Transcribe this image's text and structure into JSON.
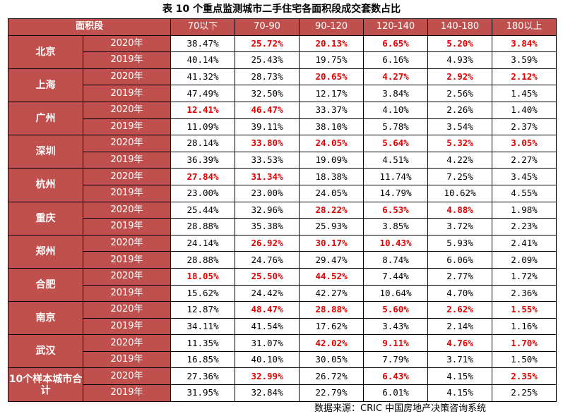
{
  "title": "表 10 个重点监测城市二手住宅各面积段成交套数占比",
  "header": {
    "area_label": "面积段",
    "columns": [
      "70以下",
      "70-90",
      "90-120",
      "120-140",
      "140-180",
      "180以上"
    ]
  },
  "highlight_color": "#e00000",
  "header_color": "#c0504d",
  "cities": [
    {
      "name": "北京",
      "rows": [
        {
          "year": "2020年",
          "values": [
            "38.47%",
            "25.72%",
            "20.13%",
            "6.65%",
            "5.20%",
            "3.84%"
          ],
          "highlight": [
            false,
            true,
            true,
            true,
            true,
            true
          ]
        },
        {
          "year": "2019年",
          "values": [
            "40.14%",
            "25.43%",
            "19.75%",
            "6.16%",
            "4.93%",
            "3.59%"
          ],
          "highlight": [
            false,
            false,
            false,
            false,
            false,
            false
          ]
        }
      ]
    },
    {
      "name": "上海",
      "rows": [
        {
          "year": "2020年",
          "values": [
            "41.32%",
            "28.73%",
            "20.65%",
            "4.27%",
            "2.92%",
            "2.12%"
          ],
          "highlight": [
            false,
            false,
            true,
            true,
            true,
            true
          ]
        },
        {
          "year": "2019年",
          "values": [
            "47.49%",
            "32.50%",
            "12.17%",
            "3.84%",
            "2.56%",
            "1.45%"
          ],
          "highlight": [
            false,
            false,
            false,
            false,
            false,
            false
          ]
        }
      ]
    },
    {
      "name": "广州",
      "rows": [
        {
          "year": "2020年",
          "values": [
            "12.41%",
            "46.47%",
            "33.37%",
            "4.10%",
            "2.26%",
            "1.40%"
          ],
          "highlight": [
            true,
            true,
            false,
            false,
            false,
            false
          ]
        },
        {
          "year": "2019年",
          "values": [
            "11.09%",
            "39.11%",
            "38.10%",
            "5.78%",
            "3.54%",
            "2.37%"
          ],
          "highlight": [
            false,
            false,
            false,
            false,
            false,
            false
          ]
        }
      ]
    },
    {
      "name": "深圳",
      "rows": [
        {
          "year": "2020年",
          "values": [
            "28.14%",
            "33.80%",
            "24.05%",
            "5.64%",
            "5.32%",
            "3.05%"
          ],
          "highlight": [
            false,
            true,
            true,
            true,
            true,
            true
          ]
        },
        {
          "year": "2019年",
          "values": [
            "36.39%",
            "33.53%",
            "19.09%",
            "4.51%",
            "4.22%",
            "2.27%"
          ],
          "highlight": [
            false,
            false,
            false,
            false,
            false,
            false
          ]
        }
      ]
    },
    {
      "name": "杭州",
      "rows": [
        {
          "year": "2020年",
          "values": [
            "27.84%",
            "31.34%",
            "18.38%",
            "11.74%",
            "7.25%",
            "3.45%"
          ],
          "highlight": [
            true,
            true,
            false,
            false,
            false,
            false
          ]
        },
        {
          "year": "2019年",
          "values": [
            "23.00%",
            "23.00%",
            "24.05%",
            "14.79%",
            "10.62%",
            "4.55%"
          ],
          "highlight": [
            false,
            false,
            false,
            false,
            false,
            false
          ]
        }
      ]
    },
    {
      "name": "重庆",
      "rows": [
        {
          "year": "2020年",
          "values": [
            "25.44%",
            "32.96%",
            "28.22%",
            "6.53%",
            "4.88%",
            "1.98%"
          ],
          "highlight": [
            false,
            false,
            true,
            true,
            true,
            false
          ]
        },
        {
          "year": "2019年",
          "values": [
            "28.88%",
            "35.38%",
            "25.93%",
            "3.85%",
            "3.72%",
            "2.23%"
          ],
          "highlight": [
            false,
            false,
            false,
            false,
            false,
            false
          ]
        }
      ]
    },
    {
      "name": "郑州",
      "rows": [
        {
          "year": "2020年",
          "values": [
            "24.14%",
            "26.92%",
            "30.17%",
            "10.43%",
            "5.93%",
            "2.41%"
          ],
          "highlight": [
            false,
            true,
            true,
            true,
            false,
            false
          ]
        },
        {
          "year": "2019年",
          "values": [
            "28.88%",
            "24.76%",
            "29.47%",
            "8.74%",
            "6.06%",
            "2.09%"
          ],
          "highlight": [
            false,
            false,
            false,
            false,
            false,
            false
          ]
        }
      ]
    },
    {
      "name": "合肥",
      "rows": [
        {
          "year": "2020年",
          "values": [
            "18.05%",
            "25.50%",
            "44.52%",
            "7.44%",
            "2.77%",
            "1.72%"
          ],
          "highlight": [
            true,
            true,
            true,
            false,
            false,
            false
          ]
        },
        {
          "year": "2019年",
          "values": [
            "15.62%",
            "24.42%",
            "42.27%",
            "10.64%",
            "4.70%",
            "2.36%"
          ],
          "highlight": [
            false,
            false,
            false,
            false,
            false,
            false
          ]
        }
      ]
    },
    {
      "name": "南京",
      "rows": [
        {
          "year": "2020年",
          "values": [
            "12.87%",
            "48.47%",
            "28.88%",
            "5.60%",
            "2.62%",
            "1.55%"
          ],
          "highlight": [
            false,
            true,
            true,
            true,
            true,
            true
          ]
        },
        {
          "year": "2019年",
          "values": [
            "34.11%",
            "41.54%",
            "17.62%",
            "3.43%",
            "2.14%",
            "1.16%"
          ],
          "highlight": [
            false,
            false,
            false,
            false,
            false,
            false
          ]
        }
      ]
    },
    {
      "name": "武汉",
      "rows": [
        {
          "year": "2020年",
          "values": [
            "11.35%",
            "31.07%",
            "42.02%",
            "9.11%",
            "4.76%",
            "1.70%"
          ],
          "highlight": [
            false,
            false,
            true,
            true,
            true,
            true
          ]
        },
        {
          "year": "2019年",
          "values": [
            "16.85%",
            "40.10%",
            "30.05%",
            "7.79%",
            "3.71%",
            "1.50%"
          ],
          "highlight": [
            false,
            false,
            false,
            false,
            false,
            false
          ]
        }
      ]
    },
    {
      "name": "10个样本城市合计",
      "rows": [
        {
          "year": "2020年",
          "values": [
            "27.36%",
            "32.99%",
            "26.72%",
            "6.43%",
            "4.15%",
            "2.35%"
          ],
          "highlight": [
            false,
            true,
            false,
            true,
            false,
            true
          ]
        },
        {
          "year": "2019年",
          "values": [
            "31.95%",
            "32.84%",
            "22.79%",
            "6.01%",
            "4.15%",
            "2.25%"
          ],
          "highlight": [
            false,
            false,
            false,
            false,
            false,
            false
          ]
        }
      ]
    }
  ],
  "source": "数据来源：CRIC 中国房地产决策咨询系统"
}
